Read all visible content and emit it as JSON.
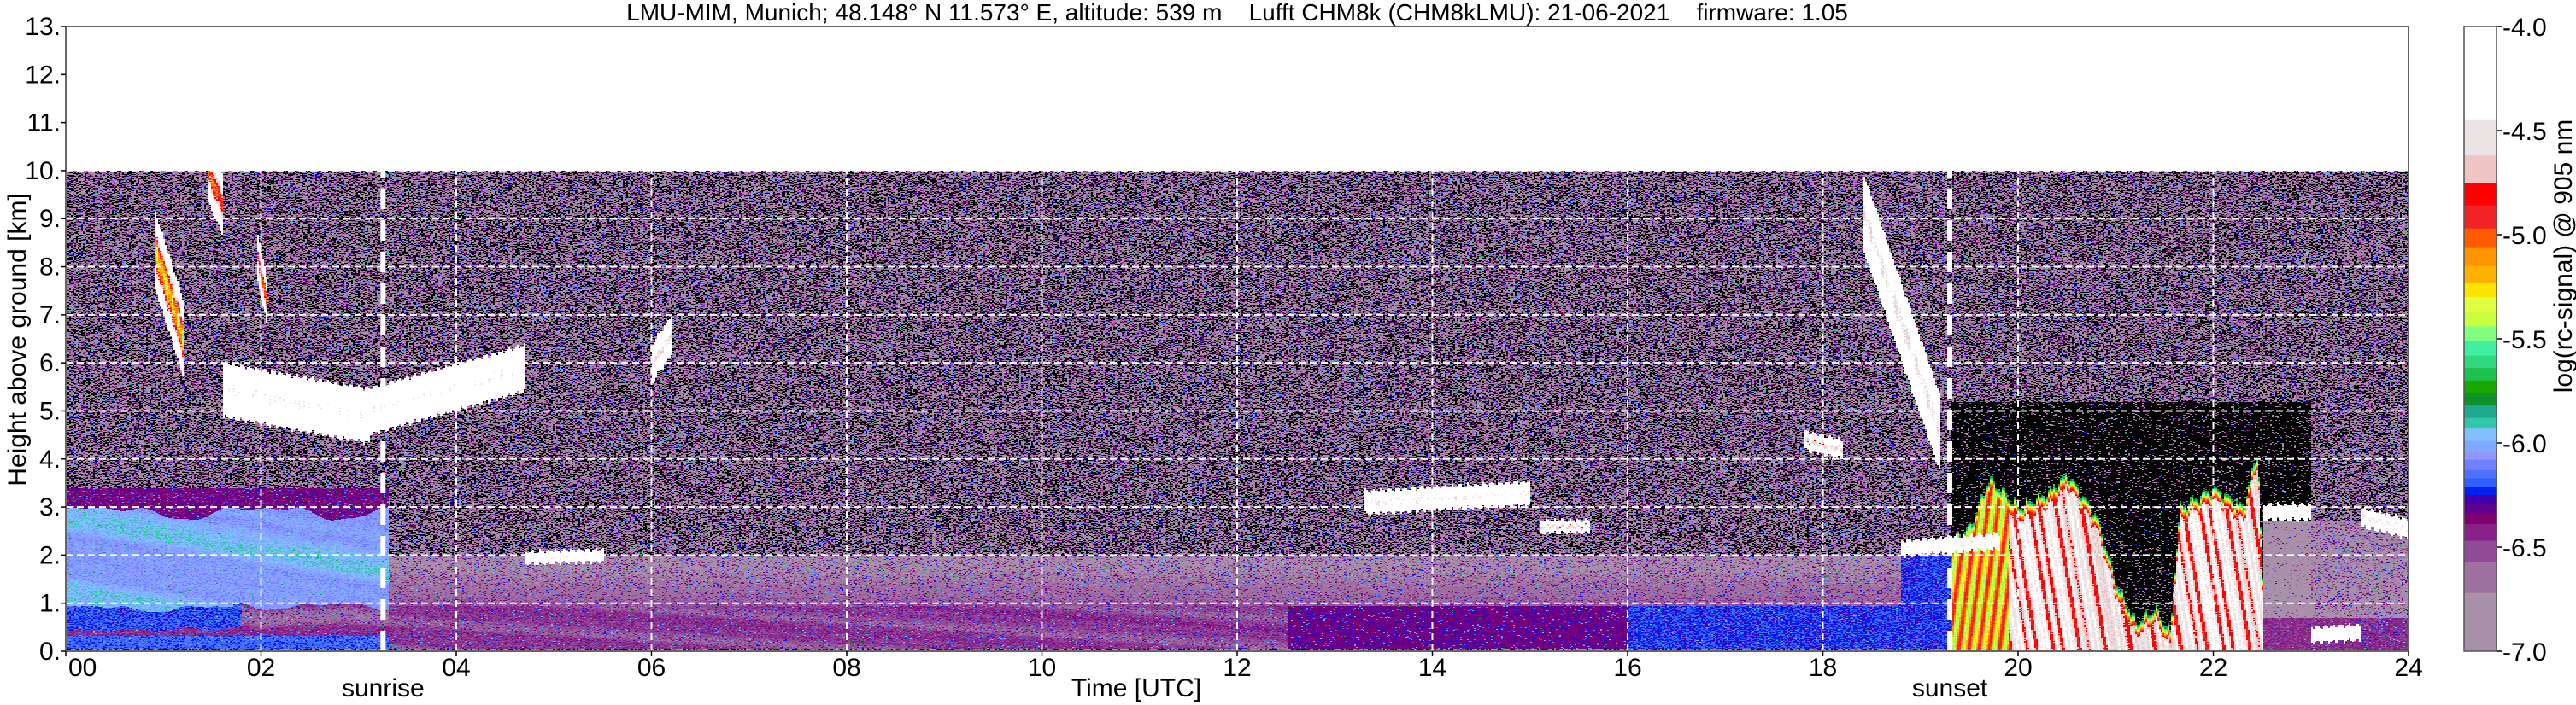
{
  "chart_data": {
    "type": "heatmap",
    "title": "LMU-MIM, Munich; 48.148° N 11.573° E, altitude: 539 m    Lufft CHM8k (CHM8kLMU): 21-06-2021    firmware: 1.05",
    "xlabel": "Time [UTC]",
    "ylabel": "Height above ground [km]",
    "xlim": [
      0,
      24
    ],
    "ylim": [
      0,
      13
    ],
    "data_height_range_km": [
      0,
      10
    ],
    "x_ticks": [
      0,
      2,
      4,
      6,
      8,
      10,
      12,
      14,
      16,
      18,
      20,
      22,
      24
    ],
    "x_tick_labels": [
      "00",
      "02",
      "04",
      "06",
      "08",
      "10",
      "12",
      "14",
      "16",
      "18",
      "20",
      "22",
      "24"
    ],
    "y_ticks": [
      0,
      1,
      2,
      3,
      4,
      5,
      6,
      7,
      8,
      9,
      10,
      11,
      12,
      13
    ],
    "y_tick_labels": [
      "0.",
      "1.",
      "2.",
      "3.",
      "4.",
      "5.",
      "6.",
      "7.",
      "8.",
      "9.",
      "10.",
      "11.",
      "12.",
      "13."
    ],
    "grid": true,
    "annotations": [
      {
        "label": "sunrise",
        "time": 3.25
      },
      {
        "label": "sunset",
        "time": 19.3
      }
    ],
    "cloud_layers": [
      {
        "start": 0.9,
        "end": 1.2,
        "base_km_start": 8.4,
        "base_km_end": 6.5,
        "thickness_km": 0.5,
        "peak": -5.3
      },
      {
        "start": 1.45,
        "end": 1.6,
        "base_km_start": 10.0,
        "base_km_end": 9.3,
        "thickness_km": 0.4,
        "peak": -5.0
      },
      {
        "start": 1.95,
        "end": 2.05,
        "base_km_start": 8.3,
        "base_km_end": 7.3,
        "thickness_km": 0.3,
        "peak": -5.0
      },
      {
        "start": 1.6,
        "end": 3.1,
        "base_km_start": 5.45,
        "base_km_end": 4.9,
        "thickness_km": 0.35,
        "peak": -4.3
      },
      {
        "start": 3.1,
        "end": 4.7,
        "base_km_start": 5.0,
        "base_km_end": 5.9,
        "thickness_km": 0.3,
        "peak": -4.3
      },
      {
        "start": 4.7,
        "end": 5.5,
        "base_km_start": 1.95,
        "base_km_end": 2.0,
        "thickness_km": 0.08,
        "peak": -4.3
      },
      {
        "start": 6.0,
        "end": 6.2,
        "base_km_start": 6.0,
        "base_km_end": 6.6,
        "thickness_km": 0.25,
        "peak": -4.5
      },
      {
        "start": 13.3,
        "end": 15.0,
        "base_km_start": 3.1,
        "base_km_end": 3.3,
        "thickness_km": 0.15,
        "peak": -4.4
      },
      {
        "start": 15.1,
        "end": 15.6,
        "base_km_start": 2.6,
        "base_km_end": 2.6,
        "thickness_km": 0.08,
        "peak": -4.6
      },
      {
        "start": 17.8,
        "end": 18.2,
        "base_km_start": 4.4,
        "base_km_end": 4.2,
        "thickness_km": 0.12,
        "peak": -4.6
      },
      {
        "start": 18.4,
        "end": 19.2,
        "base_km_start": 9.2,
        "base_km_end": 4.5,
        "thickness_km": 0.5,
        "peak": -4.5
      },
      {
        "start": 18.8,
        "end": 19.8,
        "base_km_start": 2.15,
        "base_km_end": 2.3,
        "thickness_km": 0.1,
        "peak": -4.3
      },
      {
        "start": 19.3,
        "end": 22.5,
        "base_km_start": 0.0,
        "base_km_end": 0.0,
        "thickness_km": 3.5,
        "peak": -4.2
      },
      {
        "start": 22.5,
        "end": 23.0,
        "base_km_start": 2.9,
        "base_km_end": 2.9,
        "thickness_km": 0.1,
        "peak": -4.3
      },
      {
        "start": 23.0,
        "end": 23.5,
        "base_km_start": 0.35,
        "base_km_end": 0.4,
        "thickness_km": 0.1,
        "peak": -4.3
      },
      {
        "start": 23.5,
        "end": 24.0,
        "base_km_start": 2.8,
        "base_km_end": 2.55,
        "thickness_km": 0.12,
        "peak": -4.4
      }
    ],
    "colorbar": {
      "label": "log(rc-signal) @ 905 nm",
      "range": [
        -7.0,
        -4.0
      ],
      "ticks": [
        -4.0,
        -4.5,
        -5.0,
        -5.5,
        -6.0,
        -6.5,
        -7.0
      ],
      "tick_labels": [
        "-4.0",
        "-4.5",
        "-5.0",
        "-5.5",
        "-6.0",
        "-6.5",
        "-7.0"
      ],
      "below_range_color": "#000000",
      "levels": [
        {
          "min": -4.45,
          "color": "#ffffff"
        },
        {
          "min": -4.62,
          "color": "#ece4e4"
        },
        {
          "min": -4.75,
          "color": "#eec4c4"
        },
        {
          "min": -4.86,
          "color": "#ff0000"
        },
        {
          "min": -4.97,
          "color": "#f02424"
        },
        {
          "min": -5.06,
          "color": "#ff5a00"
        },
        {
          "min": -5.15,
          "color": "#ff9400"
        },
        {
          "min": -5.23,
          "color": "#ffb000"
        },
        {
          "min": -5.3,
          "color": "#ffe400"
        },
        {
          "min": -5.37,
          "color": "#e0ff40"
        },
        {
          "min": -5.44,
          "color": "#c8ff40"
        },
        {
          "min": -5.51,
          "color": "#80ff80"
        },
        {
          "min": -5.58,
          "color": "#40f0a0"
        },
        {
          "min": -5.64,
          "color": "#30d880"
        },
        {
          "min": -5.7,
          "color": "#20c050"
        },
        {
          "min": -5.76,
          "color": "#18a800"
        },
        {
          "min": -5.82,
          "color": "#109028"
        },
        {
          "min": -5.88,
          "color": "#20a890"
        },
        {
          "min": -5.93,
          "color": "#30c8a8"
        },
        {
          "min": -5.99,
          "color": "#80c0ff"
        },
        {
          "min": -6.04,
          "color": "#80a8ff"
        },
        {
          "min": -6.08,
          "color": "#9098ff"
        },
        {
          "min": -6.13,
          "color": "#7080ff"
        },
        {
          "min": -6.17,
          "color": "#5070ff"
        },
        {
          "min": -6.21,
          "color": "#3060ff"
        },
        {
          "min": -6.25,
          "color": "#0020f0"
        },
        {
          "min": -6.29,
          "color": "#4000b0"
        },
        {
          "min": -6.34,
          "color": "#600090"
        },
        {
          "min": -6.39,
          "color": "#800070"
        },
        {
          "min": -6.47,
          "color": "#882288"
        },
        {
          "min": -6.57,
          "color": "#904a98"
        },
        {
          "min": -6.72,
          "color": "#a070a0"
        },
        {
          "min": -7.0,
          "color": "#a890a8"
        }
      ]
    }
  }
}
